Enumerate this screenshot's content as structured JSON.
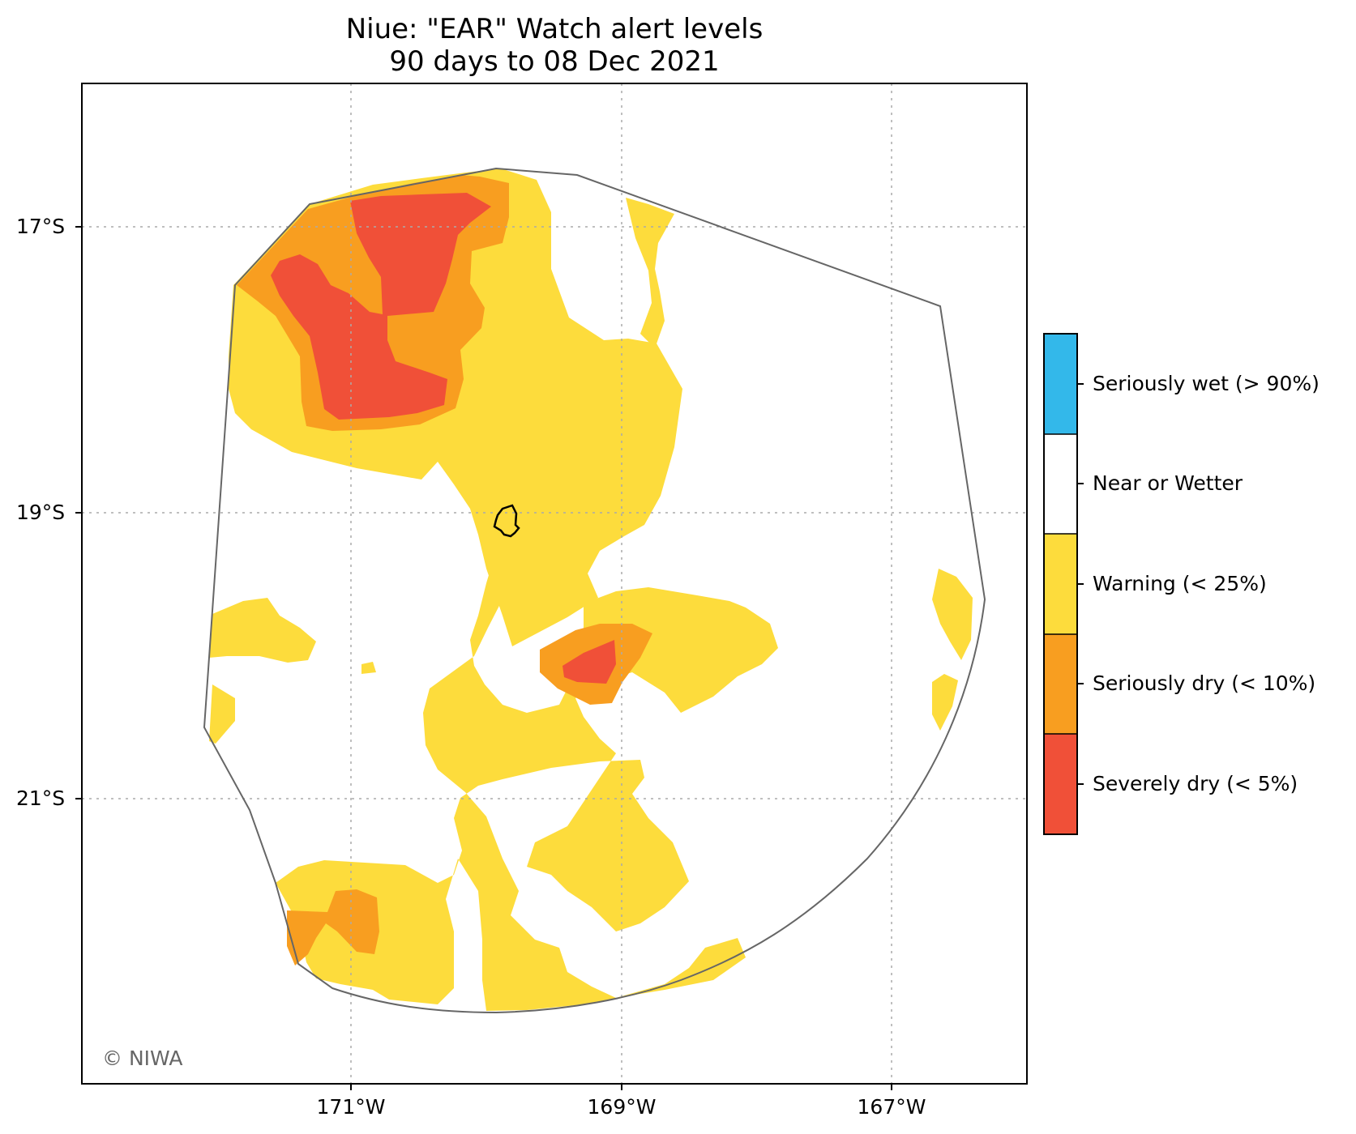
{
  "title": {
    "line1": "Niue: \"EAR\" Watch alert levels",
    "line2": "90 days to 08 Dec 2021"
  },
  "axes": {
    "x_ticks": [
      "171°W",
      "169°W",
      "167°W"
    ],
    "y_ticks": [
      "17°S",
      "19°S",
      "21°S"
    ]
  },
  "legend": {
    "items": [
      {
        "label": "Seriously wet (> 90%)",
        "color": "#33b8ea"
      },
      {
        "label": "Near or Wetter",
        "color": "#ffffff"
      },
      {
        "label": "Warning (< 25%)",
        "color": "#fddc3c"
      },
      {
        "label": "Seriously dry (< 10%)",
        "color": "#f89e20"
      },
      {
        "label": "Severely dry (< 5%)",
        "color": "#f05038"
      }
    ]
  },
  "copyright": "© NIWA",
  "colors": {
    "warning": "#fddc3c",
    "seriously_dry": "#f89e20",
    "severely_dry": "#f05038",
    "boundary": "#666666",
    "grid": "#aaaaaa"
  }
}
